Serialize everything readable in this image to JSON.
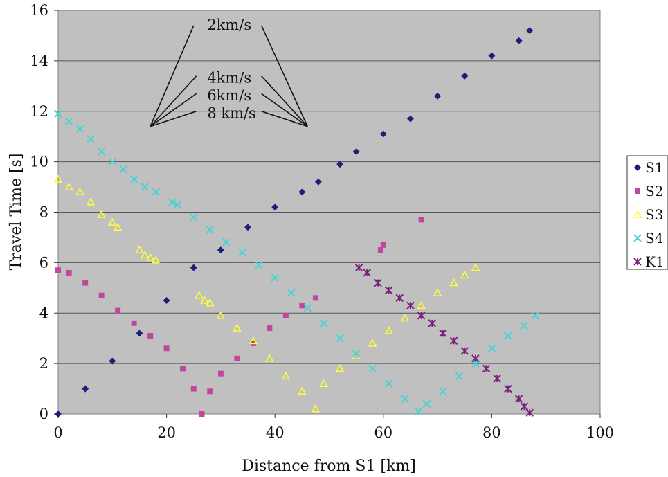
{
  "chart_data": {
    "type": "scatter",
    "xlabel": "Distance from S1 [km]",
    "ylabel": "Travel Time [s]",
    "xlim": [
      0,
      100
    ],
    "ylim": [
      0,
      16
    ],
    "xticks": [
      0,
      20,
      40,
      60,
      80,
      100
    ],
    "yticks": [
      0,
      2,
      4,
      6,
      8,
      10,
      12,
      14,
      16
    ],
    "grid": "horizontal",
    "plot_background": "#c0c0c0",
    "legend_position": "right",
    "series": [
      {
        "name": "S1",
        "marker": "diamond",
        "color": "#1f1f7a",
        "x": [
          0,
          5,
          10,
          15,
          20,
          25,
          30,
          35,
          40,
          45,
          48,
          52,
          55,
          60,
          65,
          70,
          75,
          80,
          85,
          87
        ],
        "y": [
          0,
          1,
          2.1,
          3.2,
          4.5,
          5.8,
          6.5,
          7.4,
          8.2,
          8.8,
          9.2,
          9.9,
          10.4,
          11.1,
          11.7,
          12.6,
          13.4,
          14.2,
          14.8,
          15.2
        ]
      },
      {
        "name": "S2",
        "marker": "square",
        "color": "#c0479e",
        "x": [
          0,
          2,
          5,
          8,
          11,
          14,
          17,
          20,
          23,
          25,
          26.5,
          28,
          30,
          33,
          36,
          39,
          42,
          45,
          47.5,
          59.5,
          60,
          67
        ],
        "y": [
          5.7,
          5.6,
          5.2,
          4.7,
          4.1,
          3.6,
          3.1,
          2.6,
          1.8,
          1.0,
          0,
          0.9,
          1.6,
          2.2,
          2.8,
          3.4,
          3.9,
          4.3,
          4.6,
          6.5,
          6.7,
          7.7
        ]
      },
      {
        "name": "S3",
        "marker": "triangle",
        "color": "#ffff33",
        "x": [
          0,
          2,
          4,
          6,
          8,
          10,
          11,
          15,
          16,
          17,
          18,
          26,
          27,
          28,
          30,
          33,
          36,
          39,
          42,
          45,
          47.5,
          49,
          52,
          55,
          58,
          61,
          64,
          67,
          70,
          73,
          75,
          77
        ],
        "y": [
          9.3,
          9.0,
          8.8,
          8.4,
          7.9,
          7.6,
          7.4,
          6.5,
          6.3,
          6.2,
          6.1,
          4.7,
          4.5,
          4.4,
          3.9,
          3.4,
          2.9,
          2.2,
          1.5,
          0.9,
          0.2,
          1.2,
          1.8,
          2.3,
          2.8,
          3.3,
          3.8,
          4.3,
          4.8,
          5.2,
          5.5,
          5.8
        ]
      },
      {
        "name": "S4",
        "marker": "x",
        "color": "#44d4d4",
        "x": [
          0,
          2,
          4,
          6,
          8,
          10,
          12,
          14,
          16,
          18,
          21,
          22,
          25,
          28,
          31,
          34,
          37,
          40,
          43,
          46,
          49,
          52,
          55,
          58,
          61,
          64,
          66.5,
          68,
          71,
          74,
          77,
          80,
          83,
          86,
          88
        ],
        "y": [
          11.9,
          11.6,
          11.3,
          10.9,
          10.4,
          10.0,
          9.7,
          9.3,
          9.0,
          8.8,
          8.4,
          8.3,
          7.8,
          7.3,
          6.8,
          6.4,
          5.9,
          5.4,
          4.8,
          4.2,
          3.6,
          3.0,
          2.4,
          1.8,
          1.2,
          0.6,
          0.1,
          0.4,
          0.9,
          1.5,
          2.0,
          2.6,
          3.1,
          3.5,
          3.9
        ]
      },
      {
        "name": "K1",
        "marker": "star",
        "color": "#7a1f7a",
        "x": [
          55.5,
          57,
          59,
          61,
          63,
          65,
          67,
          69,
          71,
          73,
          75,
          77,
          79,
          81,
          83,
          85,
          86,
          87
        ],
        "y": [
          5.8,
          5.6,
          5.2,
          4.9,
          4.6,
          4.3,
          3.9,
          3.6,
          3.2,
          2.9,
          2.5,
          2.2,
          1.8,
          1.4,
          1.0,
          0.6,
          0.3,
          0.05
        ]
      }
    ],
    "annotations": [
      {
        "label": "2km/s",
        "x": 27.5,
        "y": 15.4,
        "x1": 17,
        "y1": 11.4,
        "x2": 25,
        "y2": 15.4,
        "x3": 46,
        "y3": 11.4,
        "x4": 37.5,
        "y4": 15.4
      },
      {
        "label": "4km/s",
        "x": 27.5,
        "y": 13.3,
        "x1": 17,
        "y1": 11.4,
        "x2": 25.5,
        "y2": 13.4,
        "x3": 46,
        "y3": 11.4,
        "x4": 37.5,
        "y4": 13.4
      },
      {
        "label": "6km/s",
        "x": 27.5,
        "y": 12.6,
        "x1": 17,
        "y1": 11.4,
        "x2": 25.5,
        "y2": 12.7,
        "x3": 46,
        "y3": 11.4,
        "x4": 37.5,
        "y4": 12.7
      },
      {
        "label": "8 km/s",
        "x": 27.5,
        "y": 11.9,
        "x1": 17,
        "y1": 11.4,
        "x2": 25.5,
        "y2": 12.0,
        "x3": 46,
        "y3": 11.4,
        "x4": 37.5,
        "y4": 12.0
      }
    ]
  }
}
